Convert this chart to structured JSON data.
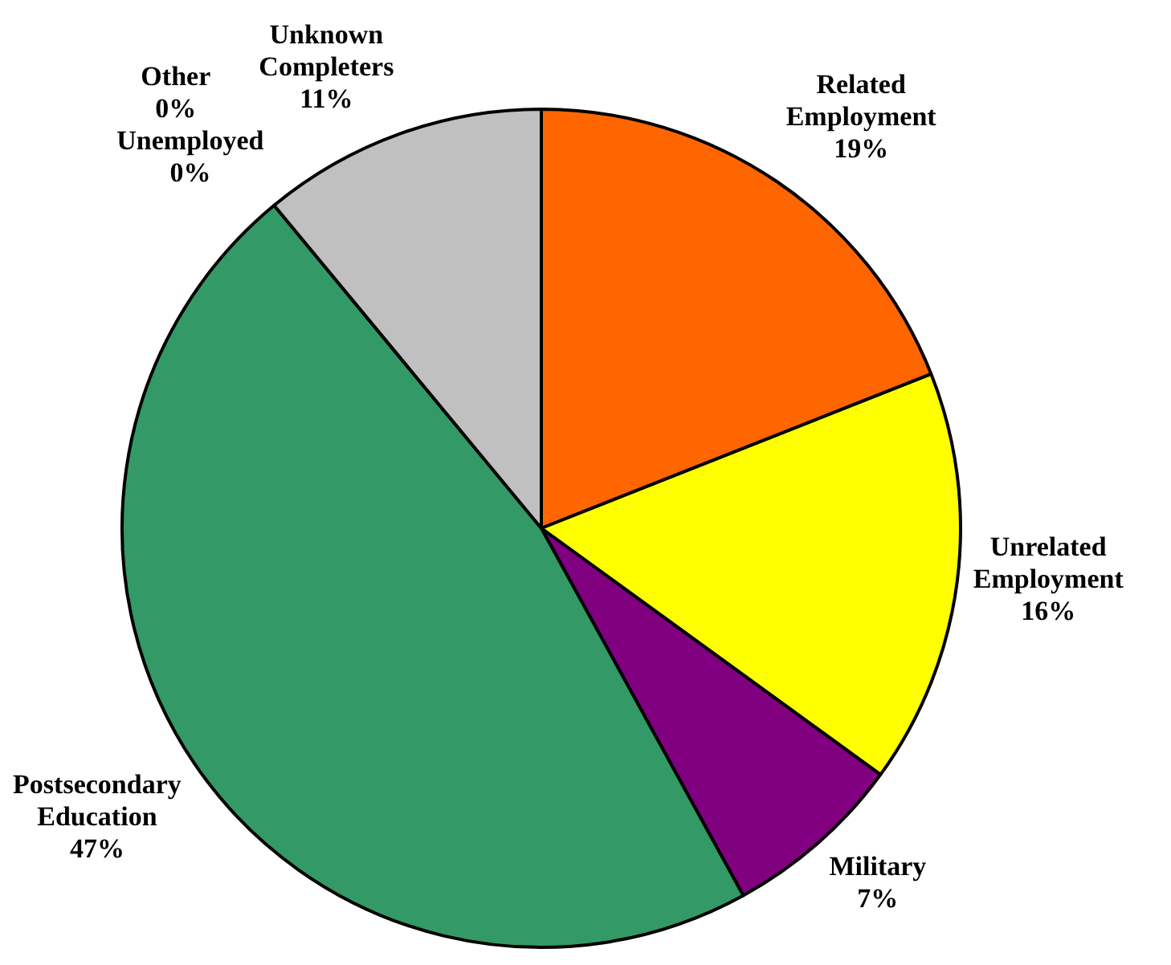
{
  "chart_data": {
    "type": "pie",
    "categories": [
      "Related Employment",
      "Unrelated Employment",
      "Military",
      "Postsecondary Education",
      "Unemployed",
      "Other",
      "Unknown Completers"
    ],
    "values": [
      19,
      16,
      7,
      47,
      0,
      0,
      11
    ],
    "colors": [
      "#ff6600",
      "#ffff00",
      "#800080",
      "#339966",
      "#3366cc",
      "#993366",
      "#c0c0c0"
    ],
    "value_labels": [
      "19%",
      "16%",
      "7%",
      "47%",
      "0%",
      "0%",
      "11%"
    ],
    "legend": false
  }
}
